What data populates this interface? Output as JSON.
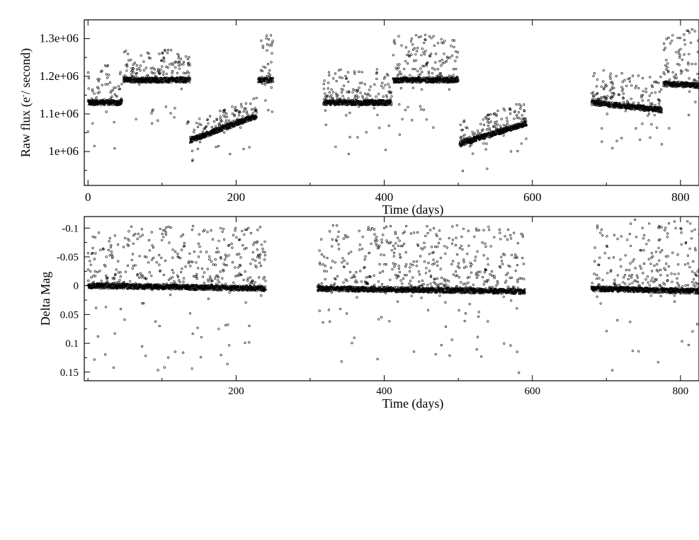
{
  "chart_data": [
    {
      "type": "scatter",
      "title": "",
      "xlabel": "Time (days)",
      "ylabel_main": "Raw flux (e",
      "ylabel_sup": "-",
      "ylabel_tail": "/ second)",
      "xlim": [
        -5,
        825
      ],
      "ylim": [
        910000,
        1350000
      ],
      "y_inverted": false,
      "grid": false,
      "xticks": [
        0,
        200,
        400,
        600,
        800
      ],
      "xtick_labels": [
        "0",
        "200",
        "400",
        "600",
        "800"
      ],
      "yticks": [
        1000000,
        1100000,
        1200000,
        1300000
      ],
      "ytick_labels": [
        "1e+06",
        "1.1e+06",
        "1.2e+06",
        "1.3e+06"
      ],
      "series": [
        {
          "segments": [
            {
              "x": [
                0,
                46
              ],
              "base": [
                1130000,
                1130000
              ],
              "spike_high": 100000,
              "spike_low": 140000
            },
            {
              "x": [
                48,
                138
              ],
              "base": [
                1190000,
                1190000
              ],
              "spike_high": 80000,
              "spike_low": 120000
            },
            {
              "x": [
                138,
                228
              ],
              "base": [
                1030000,
                1095000
              ],
              "spike_high": 50000,
              "spike_low": 80000
            },
            {
              "x": [
                230,
                250
              ],
              "base": [
                1190000,
                1190000
              ],
              "spike_high": 130000,
              "spike_low": 90000
            },
            {
              "x": [
                318,
                410
              ],
              "base": [
                1130000,
                1130000
              ],
              "spike_high": 90000,
              "spike_low": 150000
            },
            {
              "x": [
                412,
                500
              ],
              "base": [
                1190000,
                1190000
              ],
              "spike_high": 120000,
              "spike_low": 150000
            },
            {
              "x": [
                502,
                592
              ],
              "base": [
                1020000,
                1075000
              ],
              "spike_high": 60000,
              "spike_low": 100000
            },
            {
              "x": [
                680,
                775
              ],
              "base": [
                1130000,
                1110000
              ],
              "spike_high": 90000,
              "spike_low": 130000
            },
            {
              "x": [
                777,
                830
              ],
              "base": [
                1180000,
                1175000
              ],
              "spike_high": 150000,
              "spike_low": 120000
            }
          ]
        }
      ]
    },
    {
      "type": "scatter",
      "title": "",
      "xlabel": "Time (days)",
      "ylabel": "Delta Mag",
      "xlim": [
        -5,
        825
      ],
      "ylim": [
        0.165,
        -0.12
      ],
      "y_inverted": true,
      "grid": false,
      "xticks": [
        200,
        400,
        600,
        800
      ],
      "xtick_labels": [
        "200",
        "400",
        "600",
        "800"
      ],
      "yticks": [
        -0.1,
        -0.05,
        0,
        0.05,
        0.1,
        0.15
      ],
      "ytick_labels": [
        "-0.1",
        "-0.05",
        "0",
        "0.05",
        "0.1",
        "0.15"
      ],
      "series": [
        {
          "segments": [
            {
              "x": [
                0,
                240
              ],
              "base": [
                0.0,
                0.005
              ],
              "spike_high": -0.105,
              "spike_low": 0.15
            },
            {
              "x": [
                310,
                590
              ],
              "base": [
                0.005,
                0.01
              ],
              "spike_high": -0.105,
              "spike_low": 0.155
            },
            {
              "x": [
                680,
                830
              ],
              "base": [
                0.005,
                0.01
              ],
              "spike_high": -0.115,
              "spike_low": 0.15
            }
          ]
        }
      ]
    }
  ]
}
